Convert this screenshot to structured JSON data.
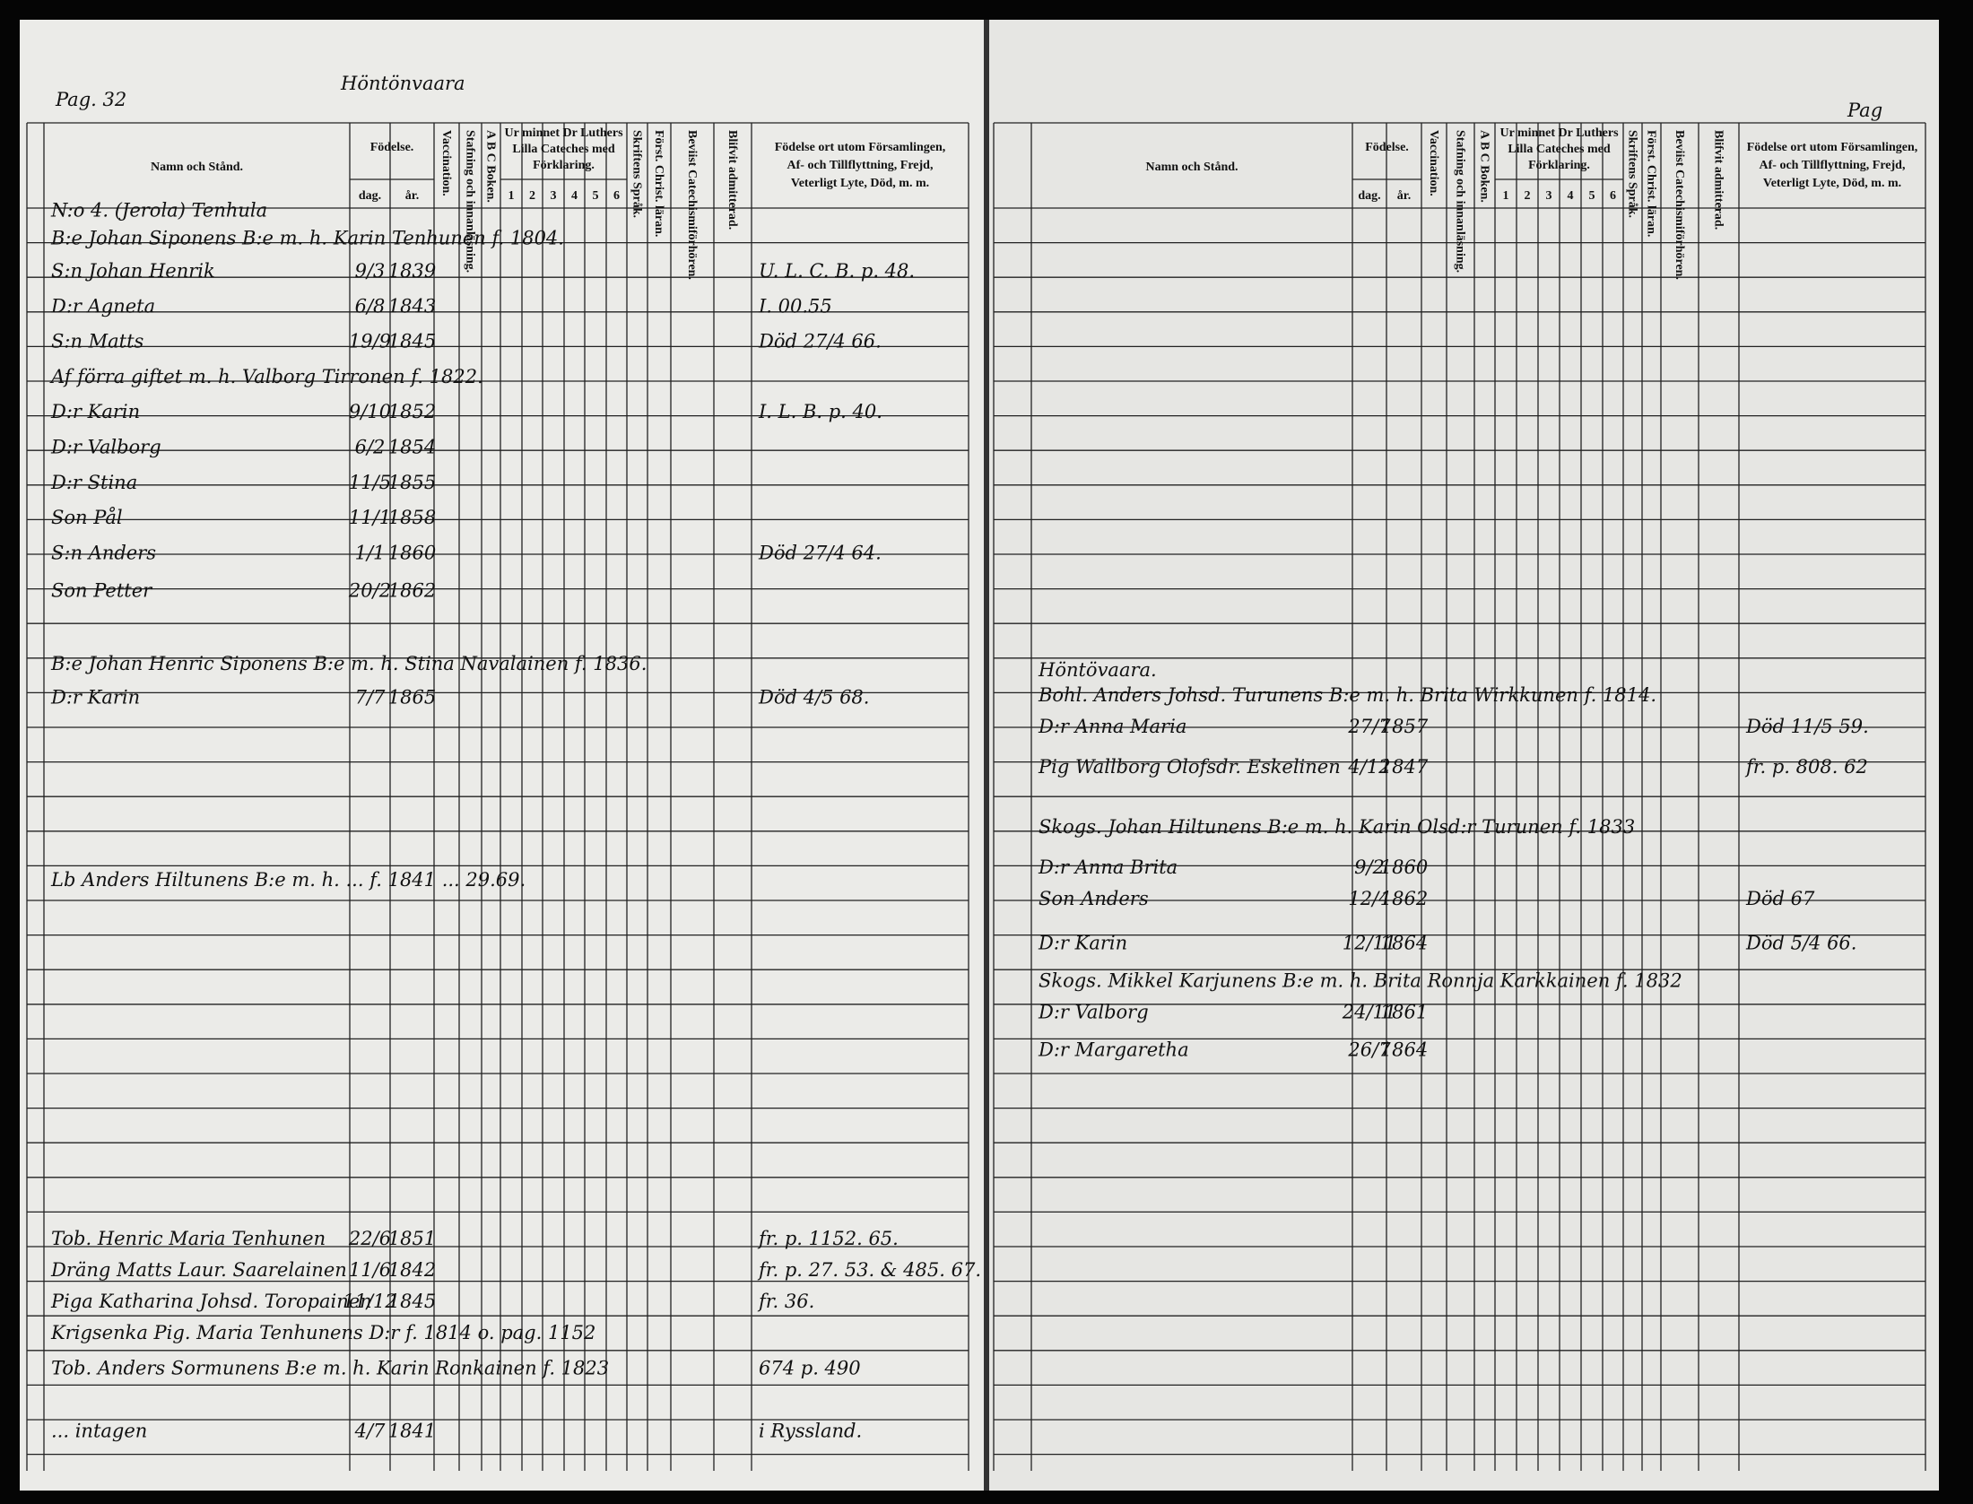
{
  "left_page": {
    "page_label": "Pag. 32",
    "place": "Höntönvaara",
    "headers": {
      "name": "Namn och Stånd.",
      "birth": "Födelse.",
      "day": "dag.",
      "year": "år.",
      "vaccination": "Vaccination.",
      "reading": "Stafning och innanläsning.",
      "abc": "A B C Boken.",
      "catechism": [
        "Ur minnet Dr Luthers",
        "Lilla Cateches med",
        "Förklaring."
      ],
      "numbers": [
        "1",
        "2",
        "3",
        "4",
        "5",
        "6"
      ],
      "scripture": "Skriftens Språk.",
      "christianity": "Först. Christ. läran.",
      "examinations": "Beviist Catechismiförhören.",
      "admitted": "Blifvit admitterad.",
      "remarks": [
        "Födelse ort utom Församlingen,",
        "Af- och Tillflyttning, Frejd,",
        "Veterligt Lyte, Död, m. m."
      ]
    },
    "entries": [
      {
        "name": "N:o 4. (Jerola) Tenhula"
      },
      {
        "name": "B:e Johan Siponens B:e m. h. Karin Tenhunen f. 1804."
      },
      {
        "name": "S:n Johan Henrik",
        "day": "9/3",
        "year": "1839",
        "remarks": "U. L. C. B. p. 48."
      },
      {
        "name": "D:r Agneta",
        "day": "6/8",
        "year": "1843",
        "remarks": "I. 00.55"
      },
      {
        "name": "S:n Matts",
        "day": "19/9",
        "year": "1845",
        "remarks": "Död 27/4 66."
      },
      {
        "name": "Af förra giftet m. h. Valborg Tirronen f. 1822."
      },
      {
        "name": "D:r Karin",
        "day": "9/10",
        "year": "1852",
        "remarks": "I. L. B. p. 40."
      },
      {
        "name": "D:r Valborg",
        "day": "6/2",
        "year": "1854"
      },
      {
        "name": "D:r Stina",
        "day": "11/5",
        "year": "1855"
      },
      {
        "name": "Son Pål",
        "day": "11/1",
        "year": "1858"
      },
      {
        "name": "S:n Anders",
        "day": "1/1",
        "year": "1860",
        "remarks": "Död 27/4 64."
      },
      {
        "name": "Son Petter",
        "day": "20/2",
        "year": "1862"
      },
      {
        "name": "B:e Johan Henric Siponens B:e m. h. Stina Navalainen f. 1836."
      },
      {
        "name": "D:r Karin",
        "day": "7/7",
        "year": "1865",
        "remarks": "Död 4/5 68."
      },
      {
        "name": "Lb Anders Hiltunens B:e m. h. ... f. 1841 ... 29.69."
      },
      {
        "name": "Tob. Henric Maria Tenhunen",
        "day": "22/6",
        "year": "1851",
        "remarks": "fr. p. 1152. 65."
      },
      {
        "name": "Dräng Matts Laur. Saarelainen",
        "day": "11/6",
        "year": "1842",
        "remarks": "fr. p. 27. 53. & 485. 67."
      },
      {
        "name": "Piga Katharina Johsd. Toropainen",
        "day": "11/12",
        "year": "1845",
        "remarks": "fr. 36."
      },
      {
        "name": "Krigsenka Pig. Maria Tenhunens D:r f. 1814 o. pag. 1152"
      },
      {
        "name": "Tob. Anders Sormunens B:e m. h. Karin Ronkainen f. 1823",
        "remarks": "674 p. 490"
      },
      {
        "name": "... intagen",
        "day": "4/7",
        "year": "1841",
        "remarks": "i Ryssland."
      }
    ]
  },
  "right_page": {
    "page_label": "Pag",
    "headers": {
      "name": "Namn och Stånd.",
      "birth": "Födelse.",
      "day": "dag.",
      "year": "år.",
      "vaccination": "Vaccination.",
      "reading": "Stafning och innanläsning.",
      "abc": "A B C Boken.",
      "catechism": [
        "Ur minnet Dr Luthers",
        "Lilla Cateches med",
        "Förklaring."
      ],
      "numbers": [
        "1",
        "2",
        "3",
        "4",
        "5",
        "6"
      ],
      "scripture": "Skriftens Språk.",
      "christianity": "Först. Christ. läran.",
      "examinations": "Beviist Catechismiförhören.",
      "admitted": "Blifvit admitterad.",
      "remarks": [
        "Födelse ort utom Församlingen,",
        "Af- och Tillflyttning, Frejd,",
        "Veterligt Lyte, Död, m. m."
      ]
    },
    "entries": [
      {
        "name": "Höntövaara."
      },
      {
        "name": "Bohl. Anders Johsd. Turunens B:e m. h. Brita Wirkkunen f. 1814."
      },
      {
        "name": "D:r Anna Maria",
        "day": "27/7",
        "year": "1857",
        "remarks": "Död 11/5 59."
      },
      {
        "name": "Pig Wallborg Olofsdr. Eskelinen",
        "day": "4/12",
        "year": "1847",
        "remarks": "fr. p. 808. 62"
      },
      {
        "name": "Skogs. Johan Hiltunens B:e m. h. Karin Olsd:r Turunen f. 1833"
      },
      {
        "name": "D:r Anna Brita",
        "day": "9/2",
        "year": "1860"
      },
      {
        "name": "Son Anders",
        "day": "12/4",
        "year": "1862",
        "remarks": "Död 67"
      },
      {
        "name": "D:r Karin",
        "day": "12/11",
        "year": "1864",
        "remarks": "Död 5/4 66."
      },
      {
        "name": "Skogs. Mikkel Karjunens B:e m. h. Brita Ronnja Karkkainen f. 1832"
      },
      {
        "name": "D:r Valborg",
        "day": "24/11",
        "year": "1861"
      },
      {
        "name": "D:r Margaretha",
        "day": "26/7",
        "year": "1864"
      }
    ]
  }
}
